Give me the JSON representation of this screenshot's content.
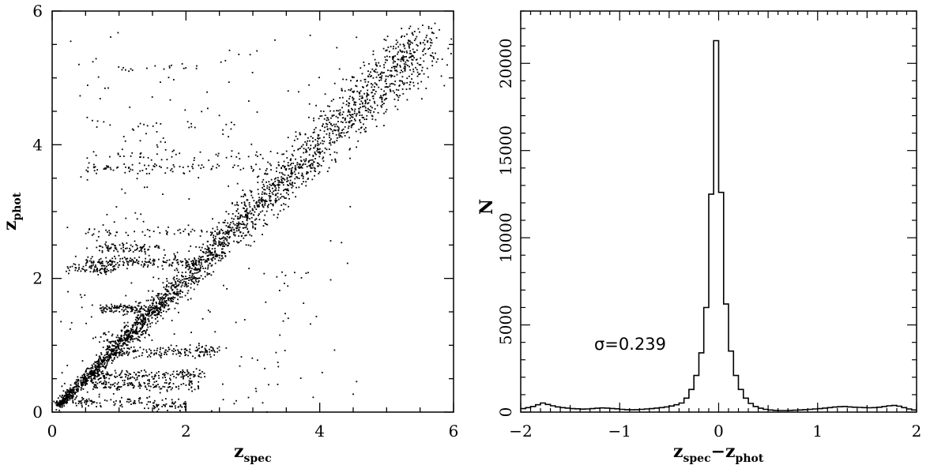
{
  "chart_data": [
    {
      "type": "scatter",
      "title": "",
      "xlabel": {
        "main": "z",
        "sub": "spec"
      },
      "ylabel": {
        "main": "z",
        "sub": "phot"
      },
      "xlim": [
        0,
        6
      ],
      "ylim": [
        0,
        6
      ],
      "xticks": [
        "0",
        "2",
        "4",
        "6"
      ],
      "yticks": [
        "0",
        "2",
        "4",
        "6"
      ],
      "grid": false,
      "point_color": "#000000",
      "density_description_clusters": [
        {
          "x": [
            0.1,
            2.5
          ],
          "y": [
            0.1,
            2.5
          ]
        },
        {
          "x": [
            2.2,
            4.0
          ],
          "y": [
            2.2,
            4.0
          ]
        },
        {
          "x": [
            4.0,
            5.5
          ],
          "y": [
            4.0,
            5.5
          ]
        }
      ],
      "points_sample": [
        [
          0.2,
          0.3
        ],
        [
          0.5,
          0.6
        ],
        [
          0.9,
          1.0
        ],
        [
          1.2,
          1.3
        ],
        [
          1.5,
          1.5
        ],
        [
          1.8,
          1.9
        ],
        [
          2.1,
          2.2
        ],
        [
          2.5,
          2.6
        ],
        [
          2.9,
          3.0
        ],
        [
          3.3,
          3.4
        ],
        [
          3.7,
          3.7
        ],
        [
          4.0,
          4.1
        ],
        [
          4.4,
          4.6
        ],
        [
          4.8,
          5.0
        ],
        [
          5.3,
          5.4
        ],
        [
          0.9,
          2.3
        ],
        [
          1.2,
          2.2
        ],
        [
          0.6,
          1.6
        ],
        [
          1.4,
          0.6
        ],
        [
          1.7,
          0.2
        ],
        [
          0.7,
          2.7
        ],
        [
          1.2,
          3.7
        ],
        [
          1.8,
          3.9
        ],
        [
          0.4,
          5.2
        ]
      ]
    },
    {
      "type": "histogram",
      "title": "",
      "xlabel": {
        "a": "z",
        "a_sub": "spec",
        "op": "−",
        "b": "z",
        "b_sub": "phot"
      },
      "ylabel": "N",
      "xlim": [
        -2,
        2
      ],
      "ylim": [
        0,
        23000
      ],
      "xticks": [
        "−2",
        "−1",
        "0",
        "1",
        "2"
      ],
      "yticks": [
        "0",
        "5000",
        "10000",
        "15000",
        "20000"
      ],
      "grid": false,
      "annotation": "σ=0.239",
      "bin_width": 0.05,
      "bin_start": -2.0,
      "counts": [
        200,
        260,
        320,
        420,
        520,
        440,
        360,
        300,
        260,
        230,
        200,
        190,
        170,
        180,
        200,
        220,
        240,
        230,
        210,
        190,
        160,
        140,
        130,
        140,
        160,
        180,
        200,
        230,
        260,
        300,
        350,
        420,
        520,
        800,
        1300,
        2100,
        3400,
        6000,
        12500,
        21300,
        12600,
        6200,
        3500,
        2100,
        1300,
        800,
        500,
        320,
        220,
        160,
        120,
        100,
        90,
        90,
        100,
        110,
        120,
        140,
        160,
        180,
        200,
        230,
        260,
        290,
        310,
        320,
        300,
        280,
        270,
        260,
        250,
        260,
        280,
        320,
        360,
        380,
        340,
        260,
        180,
        120
      ]
    }
  ]
}
